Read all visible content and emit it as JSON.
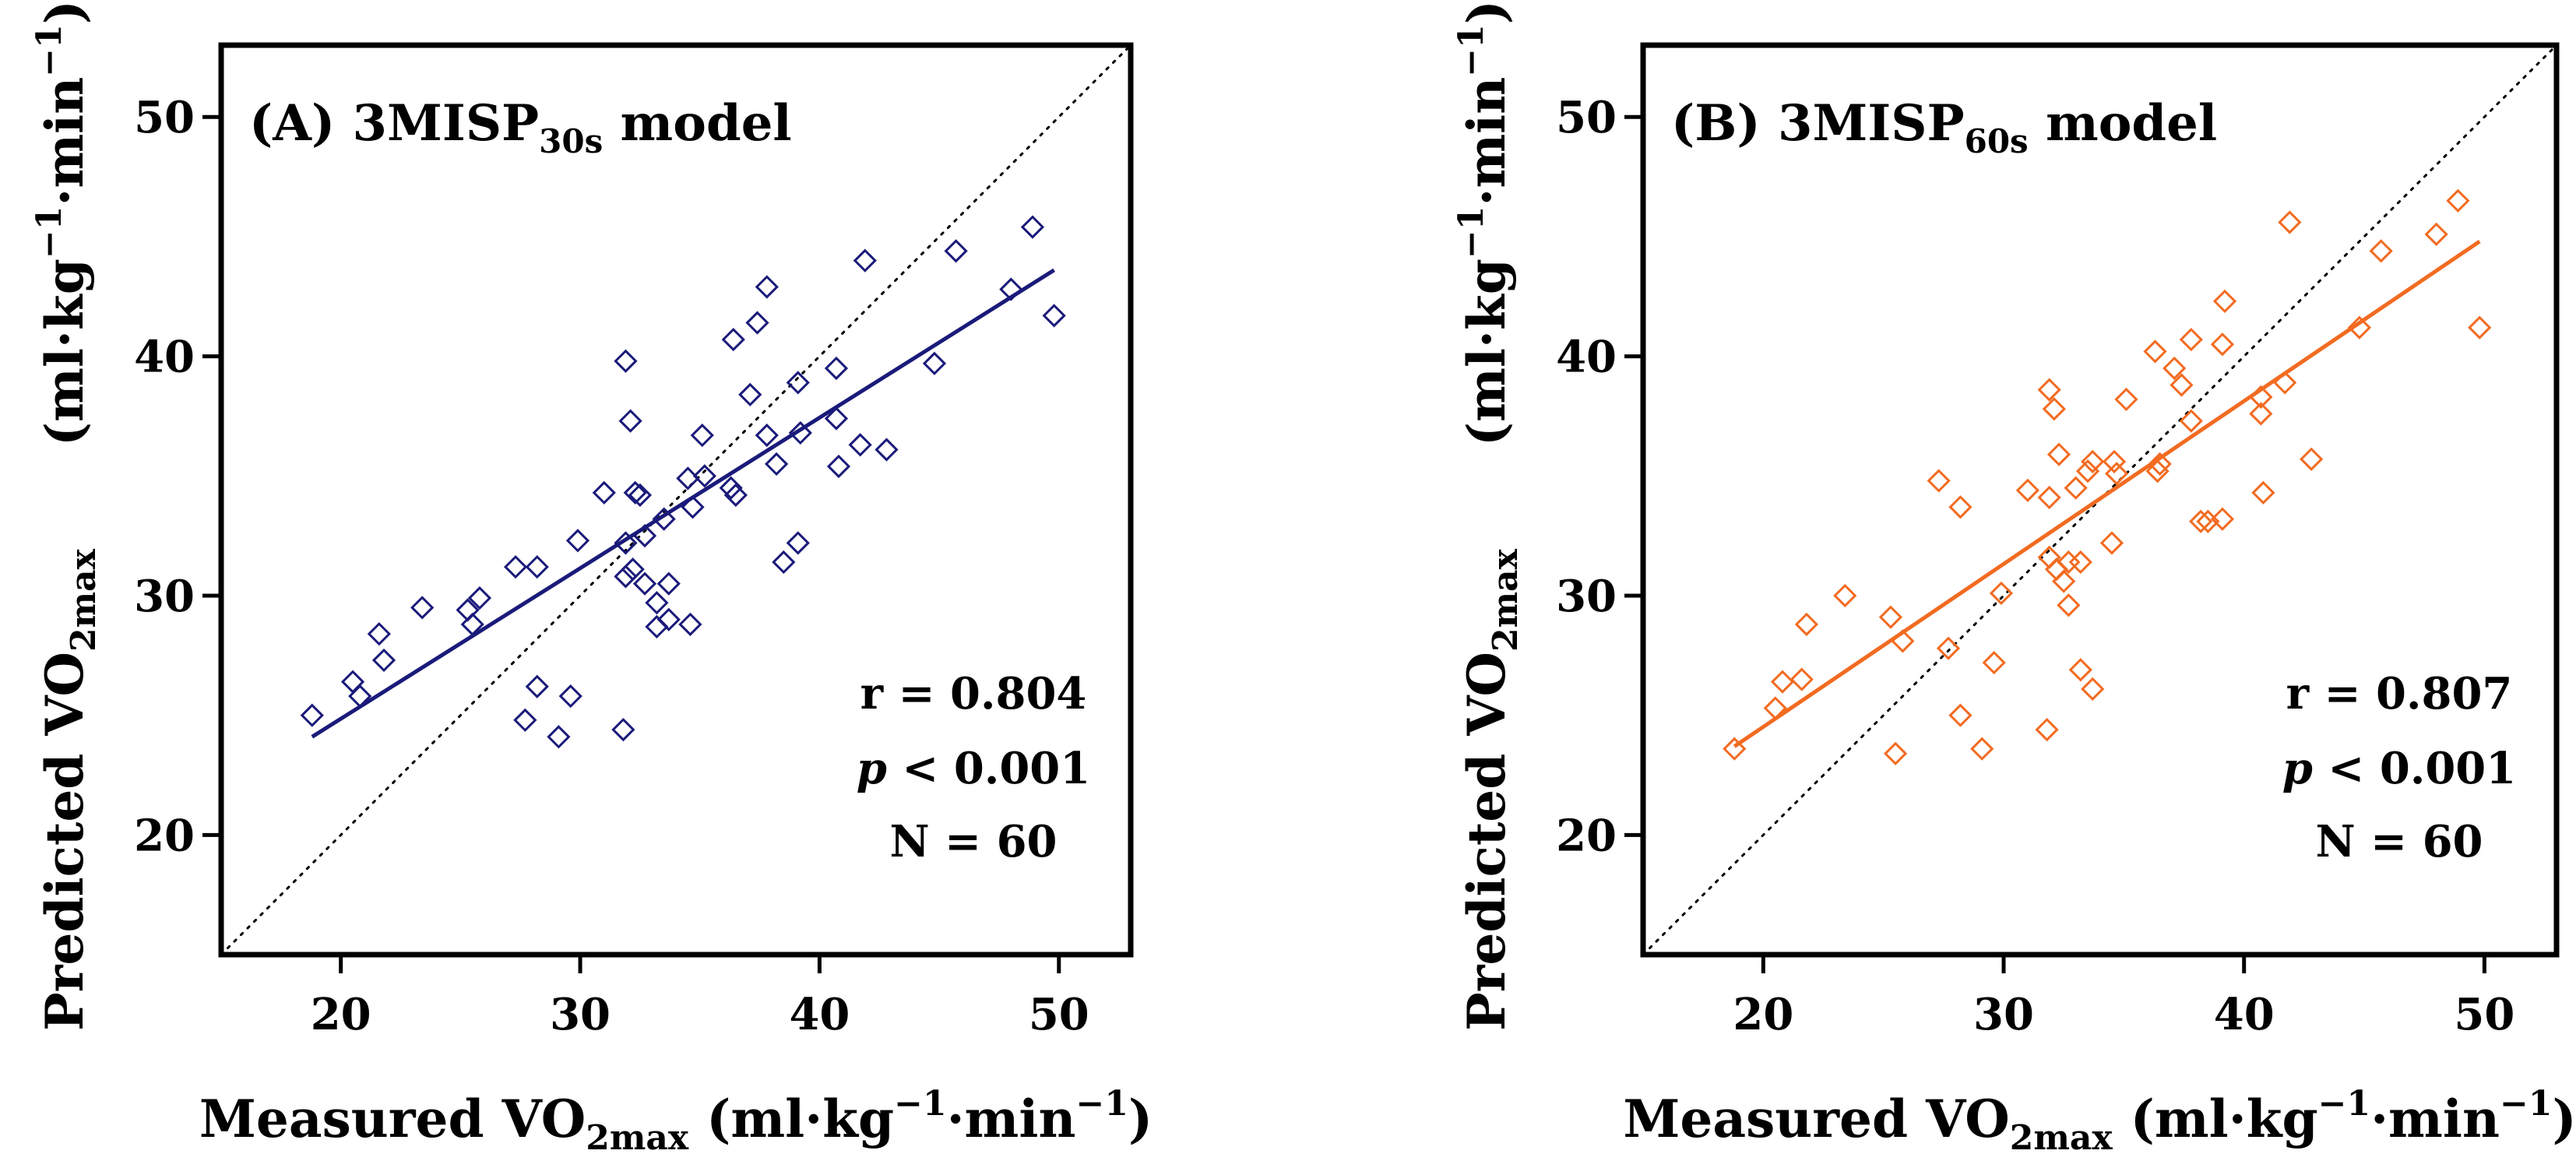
{
  "figure": {
    "common": {
      "y_axis_label": {
        "main": "Predicted VO",
        "sub": "2max",
        "units": "(ml·kg",
        "sup1": "−1",
        "units2": "·min",
        "sup2": "−1",
        "close": ")"
      },
      "x_axis_label": {
        "main": "Measured VO",
        "sub": "2max",
        "units": " (ml·kg",
        "sup1": "−1",
        "units2": "·min",
        "sup2": "−1",
        "close": ")"
      }
    }
  },
  "chart_data": [
    {
      "type": "scatter",
      "panel": "A",
      "title": {
        "prefix": "(A) 3MISP",
        "sub": "30s",
        "suffix": " model"
      },
      "xlabel": "Measured VO2max (ml·kg−1·min−1)",
      "ylabel": "Predicted VO2max (ml·kg−1·min−1)",
      "xlim": [
        15,
        53
      ],
      "ylim": [
        15,
        53
      ],
      "xticks": [
        20,
        30,
        40,
        50
      ],
      "yticks": [
        20,
        30,
        40,
        50
      ],
      "color": "#1a1a7a",
      "marker": "diamond-open",
      "stats": {
        "r": "r = 0.804",
        "p_symbol": "p",
        "p_rest": " < 0.001",
        "n": "N = 60"
      },
      "identity_line": true,
      "regression_line": {
        "from": [
          18.8,
          24.1
        ],
        "to": [
          49.8,
          43.6
        ]
      },
      "points": [
        [
          18.8,
          25.0
        ],
        [
          20.5,
          26.4
        ],
        [
          20.8,
          25.8
        ],
        [
          21.6,
          28.4
        ],
        [
          21.8,
          27.3
        ],
        [
          23.4,
          29.5
        ],
        [
          25.3,
          29.4
        ],
        [
          25.5,
          28.8
        ],
        [
          25.8,
          29.9
        ],
        [
          27.3,
          31.2
        ],
        [
          27.7,
          24.8
        ],
        [
          28.2,
          26.2
        ],
        [
          28.2,
          31.2
        ],
        [
          29.1,
          24.1
        ],
        [
          29.6,
          25.8
        ],
        [
          29.9,
          32.3
        ],
        [
          31.0,
          34.3
        ],
        [
          31.8,
          24.4
        ],
        [
          31.9,
          39.8
        ],
        [
          31.9,
          32.2
        ],
        [
          31.9,
          30.8
        ],
        [
          32.1,
          37.3
        ],
        [
          32.2,
          31.1
        ],
        [
          32.3,
          34.3
        ],
        [
          32.5,
          34.2
        ],
        [
          32.7,
          32.5
        ],
        [
          32.7,
          30.5
        ],
        [
          33.2,
          29.7
        ],
        [
          33.2,
          28.7
        ],
        [
          33.5,
          33.2
        ],
        [
          33.7,
          30.5
        ],
        [
          33.7,
          29.0
        ],
        [
          34.5,
          34.9
        ],
        [
          34.6,
          28.8
        ],
        [
          34.7,
          33.7
        ],
        [
          35.1,
          36.7
        ],
        [
          36.3,
          34.5
        ],
        [
          36.4,
          40.7
        ],
        [
          36.5,
          34.2
        ],
        [
          37.1,
          38.4
        ],
        [
          37.4,
          41.4
        ],
        [
          37.8,
          42.9
        ],
        [
          37.8,
          36.7
        ],
        [
          38.2,
          35.5
        ],
        [
          38.5,
          31.4
        ],
        [
          39.1,
          38.9
        ],
        [
          39.1,
          32.2
        ],
        [
          39.2,
          36.8
        ],
        [
          40.7,
          37.4
        ],
        [
          40.7,
          39.5
        ],
        [
          40.8,
          35.4
        ],
        [
          41.7,
          36.3
        ],
        [
          41.9,
          44.0
        ],
        [
          42.8,
          36.1
        ],
        [
          44.8,
          39.7
        ],
        [
          45.7,
          44.4
        ],
        [
          48.0,
          42.8
        ],
        [
          48.9,
          45.4
        ],
        [
          49.8,
          41.7
        ],
        [
          35.2,
          35.0
        ]
      ]
    },
    {
      "type": "scatter",
      "panel": "B",
      "title": {
        "prefix": "(B) 3MISP",
        "sub": "60s",
        "suffix": " model"
      },
      "xlabel": "Measured VO2max (ml·kg−1·min−1)",
      "ylabel": "Predicted VO2max (ml·kg−1·min−1)",
      "xlim": [
        15,
        53
      ],
      "ylim": [
        15,
        53
      ],
      "xticks": [
        20,
        30,
        40,
        50
      ],
      "yticks": [
        20,
        30,
        40,
        50
      ],
      "color": "#f26b21",
      "marker": "diamond-open",
      "stats": {
        "r": "r = 0.807",
        "p_symbol": "p",
        "p_rest": " < 0.001",
        "n": "N = 60"
      },
      "identity_line": true,
      "regression_line": {
        "from": [
          18.8,
          23.7
        ],
        "to": [
          49.8,
          44.8
        ]
      },
      "points": [
        [
          18.8,
          23.6
        ],
        [
          20.5,
          25.3
        ],
        [
          20.8,
          26.4
        ],
        [
          21.6,
          26.5
        ],
        [
          21.8,
          28.8
        ],
        [
          23.4,
          30.0
        ],
        [
          25.3,
          29.1
        ],
        [
          25.5,
          23.4
        ],
        [
          25.8,
          28.1
        ],
        [
          27.3,
          34.8
        ],
        [
          27.7,
          27.8
        ],
        [
          28.2,
          25.0
        ],
        [
          28.2,
          33.7
        ],
        [
          29.1,
          23.6
        ],
        [
          29.6,
          27.2
        ],
        [
          29.9,
          30.1
        ],
        [
          31.0,
          34.4
        ],
        [
          31.8,
          24.4
        ],
        [
          31.9,
          38.6
        ],
        [
          31.9,
          34.1
        ],
        [
          31.9,
          31.6
        ],
        [
          32.1,
          37.8
        ],
        [
          32.2,
          31.1
        ],
        [
          32.3,
          35.9
        ],
        [
          32.5,
          30.6
        ],
        [
          32.7,
          29.6
        ],
        [
          32.7,
          31.4
        ],
        [
          33.2,
          31.4
        ],
        [
          33.2,
          26.9
        ],
        [
          33.5,
          35.2
        ],
        [
          33.7,
          26.1
        ],
        [
          33.7,
          35.6
        ],
        [
          34.5,
          32.2
        ],
        [
          34.6,
          35.6
        ],
        [
          34.7,
          35.1
        ],
        [
          35.1,
          38.2
        ],
        [
          36.3,
          40.2
        ],
        [
          36.4,
          35.2
        ],
        [
          36.5,
          35.5
        ],
        [
          37.1,
          39.5
        ],
        [
          37.4,
          38.8
        ],
        [
          37.8,
          40.7
        ],
        [
          37.8,
          37.3
        ],
        [
          38.2,
          33.1
        ],
        [
          38.5,
          33.1
        ],
        [
          39.1,
          40.5
        ],
        [
          39.1,
          33.2
        ],
        [
          39.2,
          42.3
        ],
        [
          40.7,
          38.3
        ],
        [
          40.7,
          37.6
        ],
        [
          40.8,
          34.3
        ],
        [
          41.7,
          38.9
        ],
        [
          41.9,
          45.6
        ],
        [
          42.8,
          35.7
        ],
        [
          44.8,
          41.2
        ],
        [
          45.7,
          44.4
        ],
        [
          48.0,
          45.1
        ],
        [
          48.9,
          46.5
        ],
        [
          49.8,
          41.2
        ],
        [
          33.0,
          34.5
        ]
      ]
    }
  ]
}
